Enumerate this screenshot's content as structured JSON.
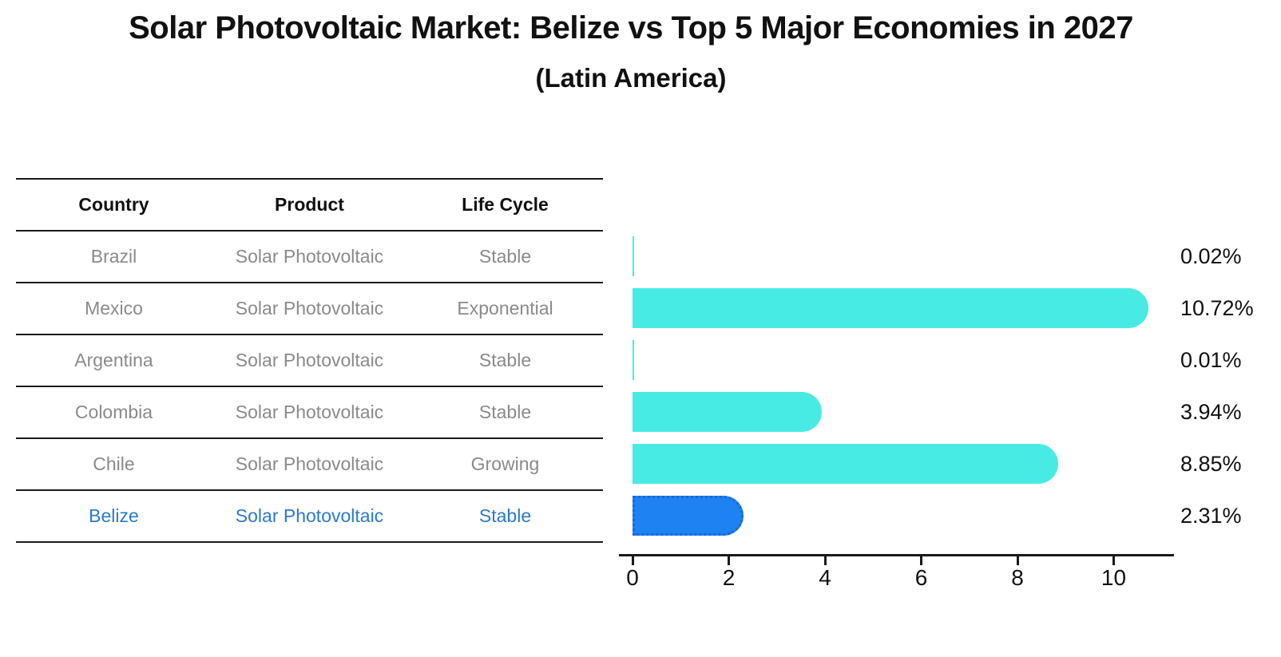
{
  "title": "Solar Photovoltaic Market: Belize vs Top 5 Major Economies in 2027",
  "subtitle": "(Latin America)",
  "table": {
    "headers": [
      "Country",
      "Product",
      "Life Cycle"
    ],
    "rows": [
      {
        "country": "Brazil",
        "product": "Solar Photovoltaic",
        "life_cycle": "Stable",
        "highlighted": false
      },
      {
        "country": "Mexico",
        "product": "Solar Photovoltaic",
        "life_cycle": "Exponential",
        "highlighted": false
      },
      {
        "country": "Argentina",
        "product": "Solar Photovoltaic",
        "life_cycle": "Stable",
        "highlighted": false
      },
      {
        "country": "Colombia",
        "product": "Solar Photovoltaic",
        "life_cycle": "Stable",
        "highlighted": false
      },
      {
        "country": "Chile",
        "product": "Solar Photovoltaic",
        "life_cycle": "Growing",
        "highlighted": false
      },
      {
        "country": "Belize",
        "product": "Solar Photovoltaic",
        "life_cycle": "Stable",
        "highlighted": true
      }
    ]
  },
  "chart_data": {
    "type": "bar",
    "orientation": "horizontal",
    "title": "Solar Photovoltaic Market: Belize vs Top 5 Major Economies in 2027",
    "subtitle": "(Latin America)",
    "categories": [
      "Brazil",
      "Mexico",
      "Argentina",
      "Colombia",
      "Chile",
      "Belize"
    ],
    "values": [
      0.02,
      10.72,
      0.01,
      3.94,
      8.85,
      2.31
    ],
    "value_labels": [
      "0.02%",
      "10.72%",
      "0.01%",
      "3.94%",
      "8.85%",
      "2.31%"
    ],
    "highlight_index": 5,
    "x_ticks": [
      "0",
      "2",
      "4",
      "6",
      "8",
      "10"
    ],
    "xlim": [
      0,
      11.25
    ],
    "grid": false,
    "legend_position": "none",
    "bar_color": "#48EBE3",
    "highlight_bar_color": "#1E82F2",
    "highlight_bar_border_color": "#1668DD"
  },
  "colors": {
    "heading_text": "#111111",
    "table_text": "#8A8A8A",
    "highlight_text": "#2B7BC9",
    "axis": "#1A1A1A"
  }
}
